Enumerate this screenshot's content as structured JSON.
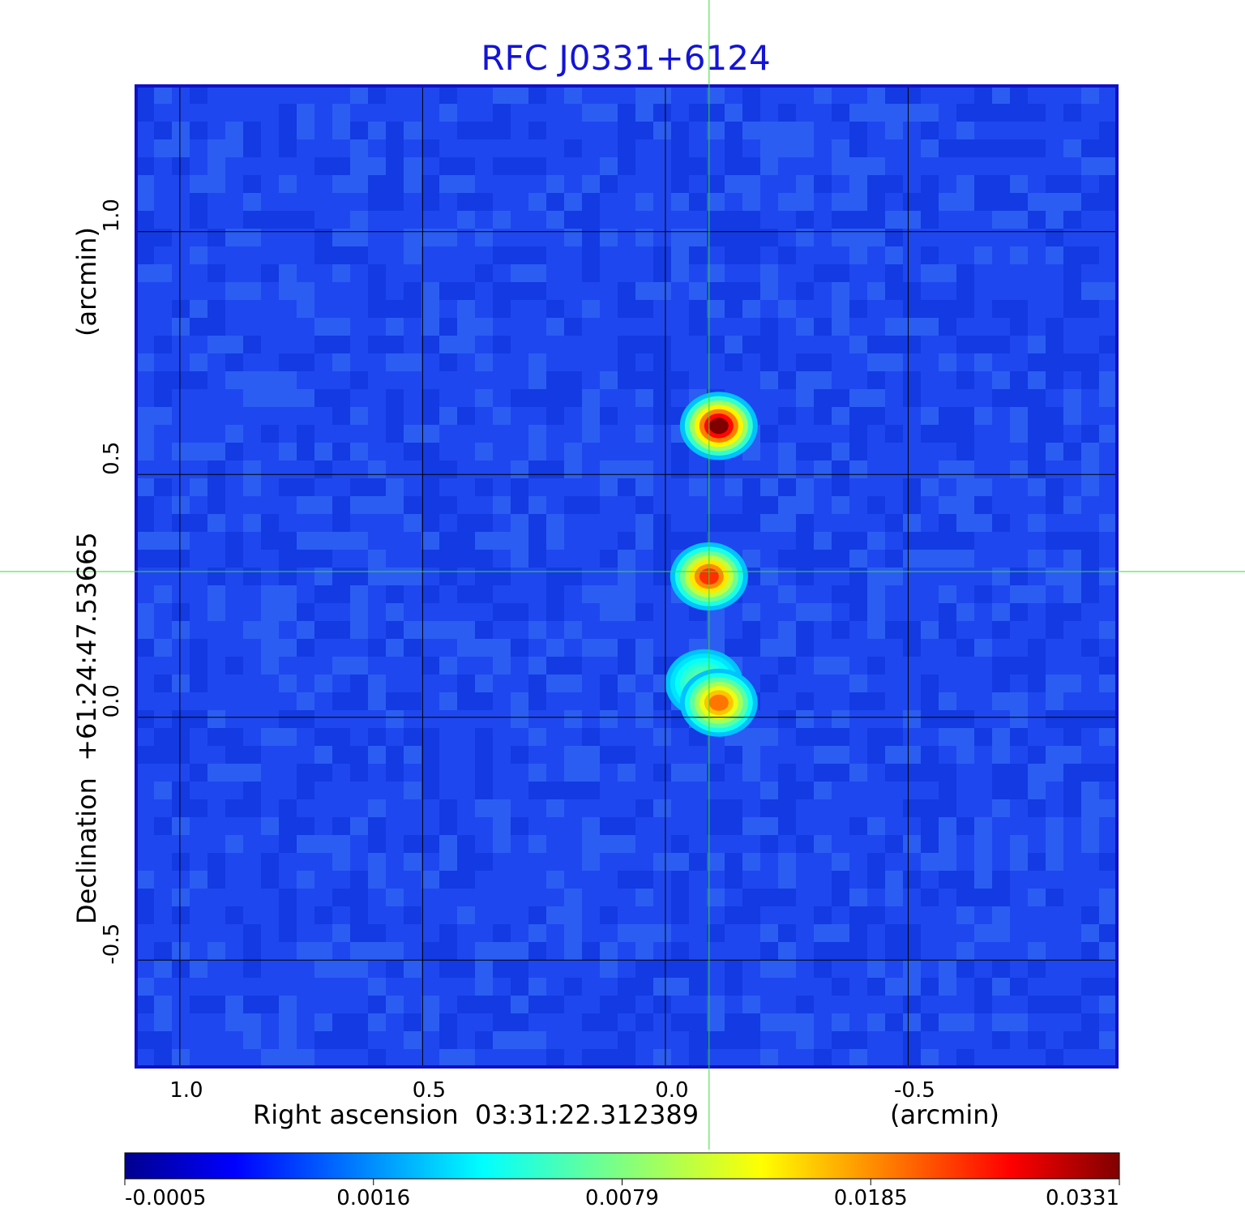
{
  "chart_data": {
    "type": "heatmap",
    "title": "RFC J0331+6124",
    "xlabel": "Right ascension  03:31:22.312389",
    "xunit": "(arcmin)",
    "ylabel": "Declination  +61:24:47.53665",
    "yunit": "(arcmin)",
    "xlim": [
      1.09,
      -0.93
    ],
    "ylim": [
      -0.72,
      1.3
    ],
    "x_ticks": [
      1.0,
      0.5,
      0.0,
      -0.5
    ],
    "x_tick_labels": [
      "1.0",
      "0.5",
      "0.0",
      "-0.5"
    ],
    "y_ticks": [
      1.0,
      0.5,
      0.0,
      -0.5
    ],
    "y_tick_labels": [
      "1.0",
      "0.5",
      "0.0",
      "-0.5"
    ],
    "grid": true,
    "crosshair": {
      "x": -0.09,
      "y": 0.3
    },
    "colormap": "jet",
    "colorbar": {
      "ticks": [
        -0.0005,
        0.0016,
        0.0079,
        0.0185,
        0.0331
      ],
      "tick_labels": [
        "-0.0005",
        "0.0016",
        "0.0079",
        "0.0185",
        "0.0331"
      ]
    },
    "sources": [
      {
        "x": -0.11,
        "y": 0.6,
        "peak": 0.0331
      },
      {
        "x": -0.09,
        "y": 0.29,
        "peak": 0.024
      },
      {
        "x": -0.08,
        "y": 0.07,
        "peak": 0.008
      },
      {
        "x": -0.11,
        "y": 0.03,
        "peak": 0.02
      }
    ]
  },
  "colors": {
    "title": "#1414d6",
    "frame": "#1010c8",
    "crosshair": "#33dd33",
    "grid": "#000000"
  }
}
